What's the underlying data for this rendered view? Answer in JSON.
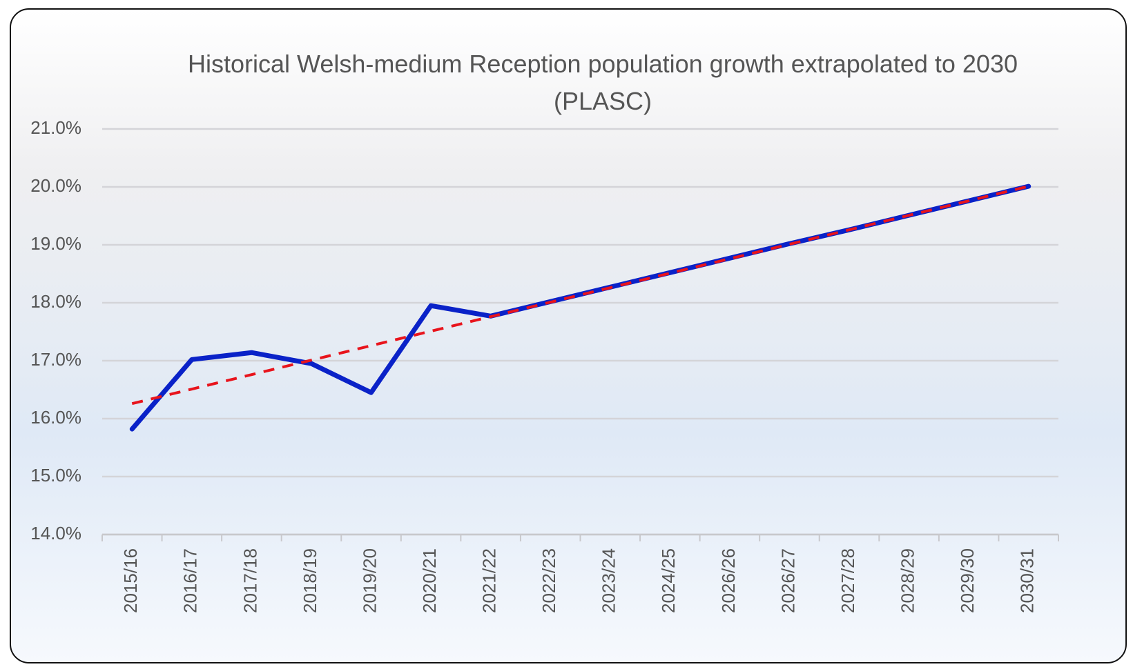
{
  "chart_data": {
    "type": "line",
    "title": "Historical Welsh-medium Reception population growth extrapolated to 2030 (PLASC)",
    "categories": [
      "2015/16",
      "2016/17",
      "2017/18",
      "2018/19",
      "2019/20",
      "2020/21",
      "2021/22",
      "2022/23",
      "2023/24",
      "2024/25",
      "2026/26",
      "2026/27",
      "2027/28",
      "2028/29",
      "2029/30",
      "2030/31"
    ],
    "series": [
      {
        "color": "#0a22c8",
        "dashed": false,
        "values": [
          15.82,
          17.02,
          17.14,
          16.95,
          16.45,
          17.95,
          17.77,
          18.02,
          18.27,
          18.52,
          18.77,
          19.02,
          19.26,
          19.51,
          19.76,
          20.01
        ]
      },
      {
        "color": "#e8141c",
        "dashed": true,
        "values": [
          16.26,
          16.51,
          16.76,
          17.01,
          17.26,
          17.51,
          17.76,
          18.01,
          18.26,
          18.51,
          18.76,
          19.01,
          19.26,
          19.51,
          19.76,
          20.01
        ]
      }
    ],
    "ylim": [
      14,
      21
    ],
    "yticks": [
      {
        "value": 14,
        "label": "14.0%"
      },
      {
        "value": 15,
        "label": "15.0%"
      },
      {
        "value": 16,
        "label": "16.0%"
      },
      {
        "value": 17,
        "label": "17.0%"
      },
      {
        "value": 18,
        "label": "18.0%"
      },
      {
        "value": 19,
        "label": "19.0%"
      },
      {
        "value": 20,
        "label": "20.0%"
      },
      {
        "value": 21,
        "label": "21.0%"
      }
    ],
    "grid": true
  }
}
